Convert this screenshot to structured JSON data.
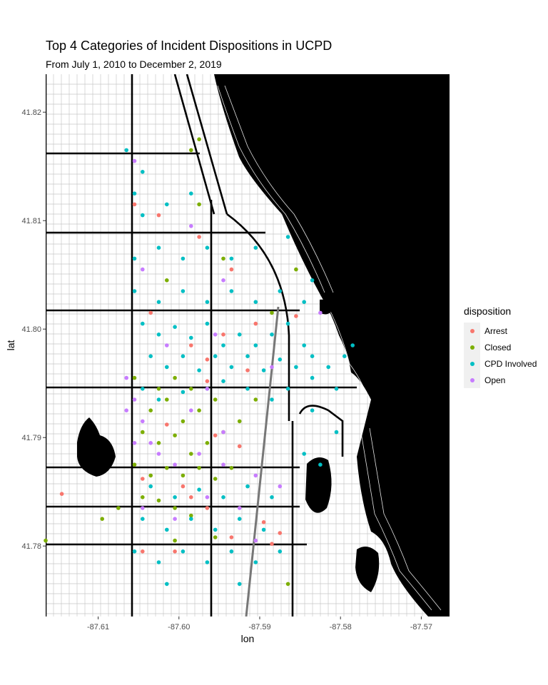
{
  "chart_data": {
    "type": "scatter",
    "title": "Top 4 Categories of Incident Dispositions in UCPD",
    "subtitle": "From July 1, 2010 to December 2, 2019",
    "xlabel": "lon",
    "ylabel": "lat",
    "xlim": [
      -87.6165,
      -87.5665
    ],
    "ylim": [
      41.7735,
      41.8235
    ],
    "x_ticks": [
      "-87.61",
      "-87.60",
      "-87.59",
      "-87.58",
      "-87.57"
    ],
    "y_ticks": [
      "41.78",
      "41.79",
      "41.80",
      "41.81",
      "41.82"
    ],
    "legend_title": "disposition",
    "legend_position": "right",
    "series": [
      {
        "name": "Arrest",
        "color": "#F8766D",
        "points": [
          [
            -87.6035,
            41.8015
          ],
          [
            -87.5985,
            41.7985
          ],
          [
            -87.5945,
            41.7995
          ],
          [
            -87.5905,
            41.8005
          ],
          [
            -87.5965,
            41.7952
          ],
          [
            -87.6015,
            41.7912
          ],
          [
            -87.5955,
            41.7902
          ],
          [
            -87.5925,
            41.7892
          ],
          [
            -87.6045,
            41.7862
          ],
          [
            -87.5995,
            41.7855
          ],
          [
            -87.5985,
            41.7845
          ],
          [
            -87.5965,
            41.7835
          ],
          [
            -87.5895,
            41.7822
          ],
          [
            -87.5885,
            41.7802
          ],
          [
            -87.6005,
            41.7795
          ],
          [
            -87.6045,
            41.7795
          ],
          [
            -87.5935,
            41.7808
          ],
          [
            -87.5875,
            41.7812
          ],
          [
            -87.5975,
            41.8085
          ],
          [
            -87.5935,
            41.8055
          ],
          [
            -87.6025,
            41.8105
          ],
          [
            -87.6055,
            41.8115
          ],
          [
            -87.6145,
            41.7848
          ],
          [
            -87.5965,
            41.7972
          ],
          [
            -87.5915,
            41.7962
          ],
          [
            -87.5855,
            41.8012
          ]
        ]
      },
      {
        "name": "Closed",
        "color": "#7CAE00",
        "points": [
          [
            -87.6045,
            41.7905
          ],
          [
            -87.6025,
            41.7895
          ],
          [
            -87.6005,
            41.7902
          ],
          [
            -87.5985,
            41.7885
          ],
          [
            -87.5965,
            41.7895
          ],
          [
            -87.5945,
            41.7905
          ],
          [
            -87.6035,
            41.7925
          ],
          [
            -87.6015,
            41.7935
          ],
          [
            -87.5995,
            41.7915
          ],
          [
            -87.5975,
            41.7925
          ],
          [
            -87.5955,
            41.7935
          ],
          [
            -87.5925,
            41.7915
          ],
          [
            -87.6055,
            41.7875
          ],
          [
            -87.6035,
            41.7865
          ],
          [
            -87.6015,
            41.7872
          ],
          [
            -87.5995,
            41.7865
          ],
          [
            -87.5975,
            41.7872
          ],
          [
            -87.5955,
            41.7862
          ],
          [
            -87.5935,
            41.7872
          ],
          [
            -87.6045,
            41.7845
          ],
          [
            -87.6025,
            41.7842
          ],
          [
            -87.6005,
            41.7835
          ],
          [
            -87.5985,
            41.7828
          ],
          [
            -87.6025,
            41.7945
          ],
          [
            -87.6055,
            41.7955
          ],
          [
            -87.6005,
            41.7955
          ],
          [
            -87.5985,
            41.7945
          ],
          [
            -87.5905,
            41.7935
          ],
          [
            -87.6075,
            41.7835
          ],
          [
            -87.6095,
            41.7825
          ],
          [
            -87.5975,
            41.8175
          ],
          [
            -87.6015,
            41.8045
          ],
          [
            -87.5975,
            41.8115
          ],
          [
            -87.5855,
            41.8055
          ],
          [
            -87.5885,
            41.8015
          ],
          [
            -87.6165,
            41.7805
          ],
          [
            -87.5865,
            41.7765
          ],
          [
            -87.5945,
            41.8065
          ],
          [
            -87.5985,
            41.8165
          ],
          [
            -87.6005,
            41.7805
          ],
          [
            -87.5955,
            41.7808
          ]
        ]
      },
      {
        "name": "CPD Involved",
        "color": "#00BFC4",
        "points": [
          [
            -87.6045,
            41.8005
          ],
          [
            -87.6025,
            41.7995
          ],
          [
            -87.6005,
            41.8002
          ],
          [
            -87.5985,
            41.7992
          ],
          [
            -87.5965,
            41.8005
          ],
          [
            -87.5945,
            41.7985
          ],
          [
            -87.5925,
            41.7995
          ],
          [
            -87.5905,
            41.7985
          ],
          [
            -87.5885,
            41.7995
          ],
          [
            -87.5865,
            41.8005
          ],
          [
            -87.5845,
            41.7985
          ],
          [
            -87.6035,
            41.7975
          ],
          [
            -87.6015,
            41.7965
          ],
          [
            -87.5995,
            41.7975
          ],
          [
            -87.5975,
            41.7962
          ],
          [
            -87.5955,
            41.7975
          ],
          [
            -87.5935,
            41.7965
          ],
          [
            -87.5915,
            41.7975
          ],
          [
            -87.5895,
            41.7962
          ],
          [
            -87.5875,
            41.7972
          ],
          [
            -87.5855,
            41.7965
          ],
          [
            -87.5835,
            41.7975
          ],
          [
            -87.6045,
            41.7945
          ],
          [
            -87.6025,
            41.7935
          ],
          [
            -87.5995,
            41.7942
          ],
          [
            -87.5965,
            41.7945
          ],
          [
            -87.5945,
            41.7952
          ],
          [
            -87.5915,
            41.7945
          ],
          [
            -87.5885,
            41.7935
          ],
          [
            -87.5865,
            41.7945
          ],
          [
            -87.5835,
            41.7955
          ],
          [
            -87.5815,
            41.7965
          ],
          [
            -87.5805,
            41.7945
          ],
          [
            -87.6055,
            41.8035
          ],
          [
            -87.6025,
            41.8025
          ],
          [
            -87.5995,
            41.8035
          ],
          [
            -87.5965,
            41.8025
          ],
          [
            -87.5935,
            41.8035
          ],
          [
            -87.5905,
            41.8025
          ],
          [
            -87.5875,
            41.8035
          ],
          [
            -87.5845,
            41.8025
          ],
          [
            -87.6055,
            41.8065
          ],
          [
            -87.6025,
            41.8075
          ],
          [
            -87.5995,
            41.8065
          ],
          [
            -87.5965,
            41.8075
          ],
          [
            -87.5935,
            41.8065
          ],
          [
            -87.5905,
            41.8075
          ],
          [
            -87.6045,
            41.8105
          ],
          [
            -87.6015,
            41.8115
          ],
          [
            -87.5985,
            41.8125
          ],
          [
            -87.6045,
            41.8145
          ],
          [
            -87.6065,
            41.8165
          ],
          [
            -87.6055,
            41.8125
          ],
          [
            -87.6035,
            41.7855
          ],
          [
            -87.6005,
            41.7845
          ],
          [
            -87.5975,
            41.7852
          ],
          [
            -87.5945,
            41.7845
          ],
          [
            -87.5915,
            41.7855
          ],
          [
            -87.5885,
            41.7845
          ],
          [
            -87.6045,
            41.7825
          ],
          [
            -87.6015,
            41.7815
          ],
          [
            -87.5985,
            41.7825
          ],
          [
            -87.5955,
            41.7815
          ],
          [
            -87.5925,
            41.7825
          ],
          [
            -87.5895,
            41.7815
          ],
          [
            -87.6055,
            41.7795
          ],
          [
            -87.6025,
            41.7785
          ],
          [
            -87.5995,
            41.7795
          ],
          [
            -87.5965,
            41.7785
          ],
          [
            -87.5935,
            41.7795
          ],
          [
            -87.5905,
            41.7785
          ],
          [
            -87.5875,
            41.7795
          ],
          [
            -87.5845,
            41.7885
          ],
          [
            -87.5825,
            41.7875
          ],
          [
            -87.5805,
            41.7905
          ],
          [
            -87.5835,
            41.7925
          ],
          [
            -87.6015,
            41.7765
          ],
          [
            -87.5925,
            41.7765
          ],
          [
            -87.5865,
            41.8085
          ],
          [
            -87.5835,
            41.8045
          ],
          [
            -87.5795,
            41.7975
          ],
          [
            -87.5785,
            41.7985
          ]
        ]
      },
      {
        "name": "Open",
        "color": "#C77CFF",
        "points": [
          [
            -87.6055,
            41.7935
          ],
          [
            -87.6045,
            41.7915
          ],
          [
            -87.6035,
            41.7895
          ],
          [
            -87.6025,
            41.7885
          ],
          [
            -87.6055,
            41.7895
          ],
          [
            -87.6065,
            41.7925
          ],
          [
            -87.6005,
            41.7875
          ],
          [
            -87.5975,
            41.7885
          ],
          [
            -87.5945,
            41.7875
          ],
          [
            -87.5905,
            41.7865
          ],
          [
            -87.5875,
            41.7855
          ],
          [
            -87.6045,
            41.7835
          ],
          [
            -87.6005,
            41.7825
          ],
          [
            -87.5965,
            41.7845
          ],
          [
            -87.5925,
            41.7835
          ],
          [
            -87.5905,
            41.7805
          ],
          [
            -87.5945,
            41.7905
          ],
          [
            -87.5985,
            41.7925
          ],
          [
            -87.6015,
            41.7985
          ],
          [
            -87.5955,
            41.7995
          ],
          [
            -87.5885,
            41.7965
          ],
          [
            -87.6045,
            41.8055
          ],
          [
            -87.6055,
            41.8155
          ],
          [
            -87.5945,
            41.8045
          ],
          [
            -87.5985,
            41.8095
          ],
          [
            -87.5825,
            41.8015
          ],
          [
            -87.6065,
            41.7955
          ],
          [
            -87.5965,
            41.7945
          ]
        ]
      }
    ]
  }
}
